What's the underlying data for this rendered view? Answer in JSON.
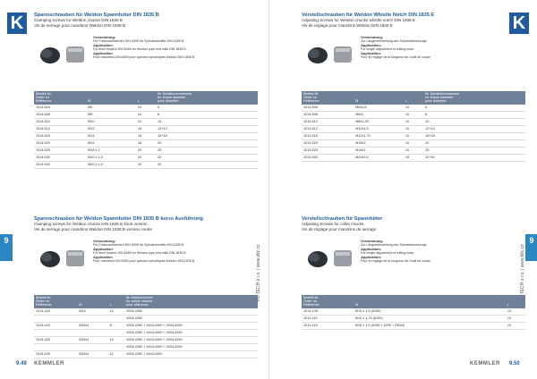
{
  "left_page": {
    "logo": "K",
    "tab": "9",
    "page_number": "9.49",
    "footer_brand": "KEMMLER",
    "side_text": "KL-TECH s.r.o. | www.kltc.cz",
    "sections": [
      {
        "title": "Spannschrauben für Weldon Spannfutter DIN 1835 B",
        "subtitles": [
          "Clamping screws for Weldon chucks DIN 1835 B",
          "Vis de serrage pour mandrins Weldon DIN 1835 B"
        ],
        "usage": [
          {
            "head": "Verwendung:",
            "text": "Für Fräseraufnahmen DIN 6359 für Zylinderschäfte DIN 1835 B"
          },
          {
            "head": "Application",
            "text": "For shell holders DIN 6359 for Weldon type end mills DIN 1835 B"
          },
          {
            "head": "Application",
            "text": "Pour mandrins DIN 6359 pour queues cylindriques Weldon DIN 1835 B"
          }
        ],
        "table": {
          "headers": [
            "Bestell-Nr.\nOrder no.\nRéférence",
            "M",
            "L",
            "für Schaftdurchmesser\nfor shank diameter\npour diamètre"
          ],
          "rows": [
            [
              "1014.604",
              "M6",
              "10",
              "6"
            ],
            [
              "1014.608",
              "M8",
              "10",
              "8"
            ],
            [
              "1014.610",
              "M10",
              "12",
              "10"
            ],
            [
              "1014.612",
              "M12",
              "16",
              "12+14"
            ],
            [
              "1014.616",
              "M14",
              "16",
              "16+18"
            ],
            [
              "1014.620",
              "M16",
              "16",
              "20"
            ],
            [
              "1014.625",
              "M18 x 2",
              "20",
              "25"
            ],
            [
              "1014.632",
              "M20 x 1,5",
              "20",
              "32"
            ],
            [
              "1014.640",
              "M20 x 1,5",
              "20",
              "40"
            ]
          ]
        }
      },
      {
        "title": "Spannschrauben für Weldon Spannfutter DIN 1835 B kurze Ausführung",
        "subtitles": [
          "Clamping screws for Weldon chucks DIN 1835 B short version",
          "Vis de serrage pour mandrins Weldon DIN 1835 B version courte"
        ],
        "usage": [
          {
            "head": "Verwendung:",
            "text": "Für Fräseraufnahmen DIN 6359 für Zylinderschäfte DIN 1835 B"
          },
          {
            "head": "Application",
            "text": "For shell holders DIN 6359 for Weldon type end mills DIN 1835 B"
          },
          {
            "head": "Application",
            "text": "Pour mandrins DIN 6359 pour queues cylindriques Weldon DIN 1835 B"
          }
        ],
        "table": {
          "headers": [
            "Bestell-Nr.\nOrder no.\nRéférence",
            "M",
            "L",
            "für Artikelnummer\nfor article number\npour référence"
          ],
          "rows": [
            [
              "1014.416",
              "M16",
              "14",
              "4004:4260"
            ],
            [
              "",
              "",
              "",
              "4004:4260"
            ],
            [
              "1014.420",
              "M16x1",
              "8",
              "4004:4260 + 4404:4260 + 4004:4250"
            ],
            [
              "",
              "",
              "",
              "4004:4260 + 4404:4260 + 4004:4250"
            ],
            [
              "1014.425",
              "M18x1",
              "10",
              "4004:4260 + 4404:4260 + 4004:4250"
            ],
            [
              "",
              "",
              "",
              "4004:4260 + 4404:4260 + 4004:4250"
            ],
            [
              "1014.430",
              "M18x1",
              "11",
              "4004:4260 + 4404:4260"
            ]
          ]
        }
      }
    ]
  },
  "right_page": {
    "logo": "K",
    "tab": "9",
    "page_number": "9.50",
    "footer_brand": "KEMMLER",
    "side_text": "KL-TECH s.r.o. | www.kltc.cz",
    "sections": [
      {
        "title": "Verstellschrauben für Weldon Whistle Notch DIN 1835 E",
        "subtitles": [
          "Adjusting Screws for Weldon chucks whistle notch DIN 1835 E",
          "Vis de réglage pour mandrins Weldon DIN 1835 E"
        ],
        "usage": [
          {
            "head": "Verwendung:",
            "text": "Zur Längeneinstellung des Schneidwerkzeugs"
          },
          {
            "head": "Application:",
            "text": "For length adjustment of cutting tools"
          },
          {
            "head": "Application:",
            "text": "Pour le réglage de la longueur de l'outil de coupe"
          }
        ],
        "table": {
          "headers": [
            "Bestell-Nr.\nOrder no.\nRéférence",
            "M",
            "L",
            "für Schaftdurchmesser\nfor shank diameter\npour diamètre"
          ],
          "rows": [
            [
              "1014.506",
              "M5x0,8",
              "10",
              "6"
            ],
            [
              "1014.508",
              "M6x1",
              "10",
              "8"
            ],
            [
              "1014.510",
              "M8x1,25",
              "10",
              "10"
            ],
            [
              "1014.512",
              "M10x1,5",
              "10",
              "12+14"
            ],
            [
              "1014.516",
              "M12x1,75",
              "10",
              "16+18"
            ],
            [
              "1014.520",
              "M16x2",
              "10",
              "20"
            ],
            [
              "1014.525",
              "M16x2",
              "10",
              "25"
            ],
            [
              "1014.532",
              "M20x2,5",
              "15",
              "32+40"
            ]
          ]
        }
      },
      {
        "title": "Verstellschrauben für Spannfutter",
        "subtitles": [
          "Adjusting Screws for collet chucks",
          "Vis de réglage pour mandrins de serrage"
        ],
        "usage": [
          {
            "head": "Verwendung:",
            "text": "Zur Längeneinstellung des Schneidwerkzeugs"
          },
          {
            "head": "Application:",
            "text": "For length adjustment of cutting tools"
          },
          {
            "head": "Application:",
            "text": "Pour le réglage de la longueur de l'outil de coupe"
          }
        ],
        "table": {
          "headers": [
            "Bestell-Nr.\nOrder no.\nRéférence",
            "M",
            "",
            "L"
          ],
          "rows": [
            [
              "1014.105",
              "M10 x 1,5 (6150)",
              "",
              "10"
            ],
            [
              "1014.110",
              "M12 x 1,75 (8150)",
              "",
              "10"
            ],
            [
              "1014.115",
              "M16 x 1,5 (6150 + 6250 + ER40)",
              "",
              "10"
            ]
          ]
        }
      }
    ]
  }
}
